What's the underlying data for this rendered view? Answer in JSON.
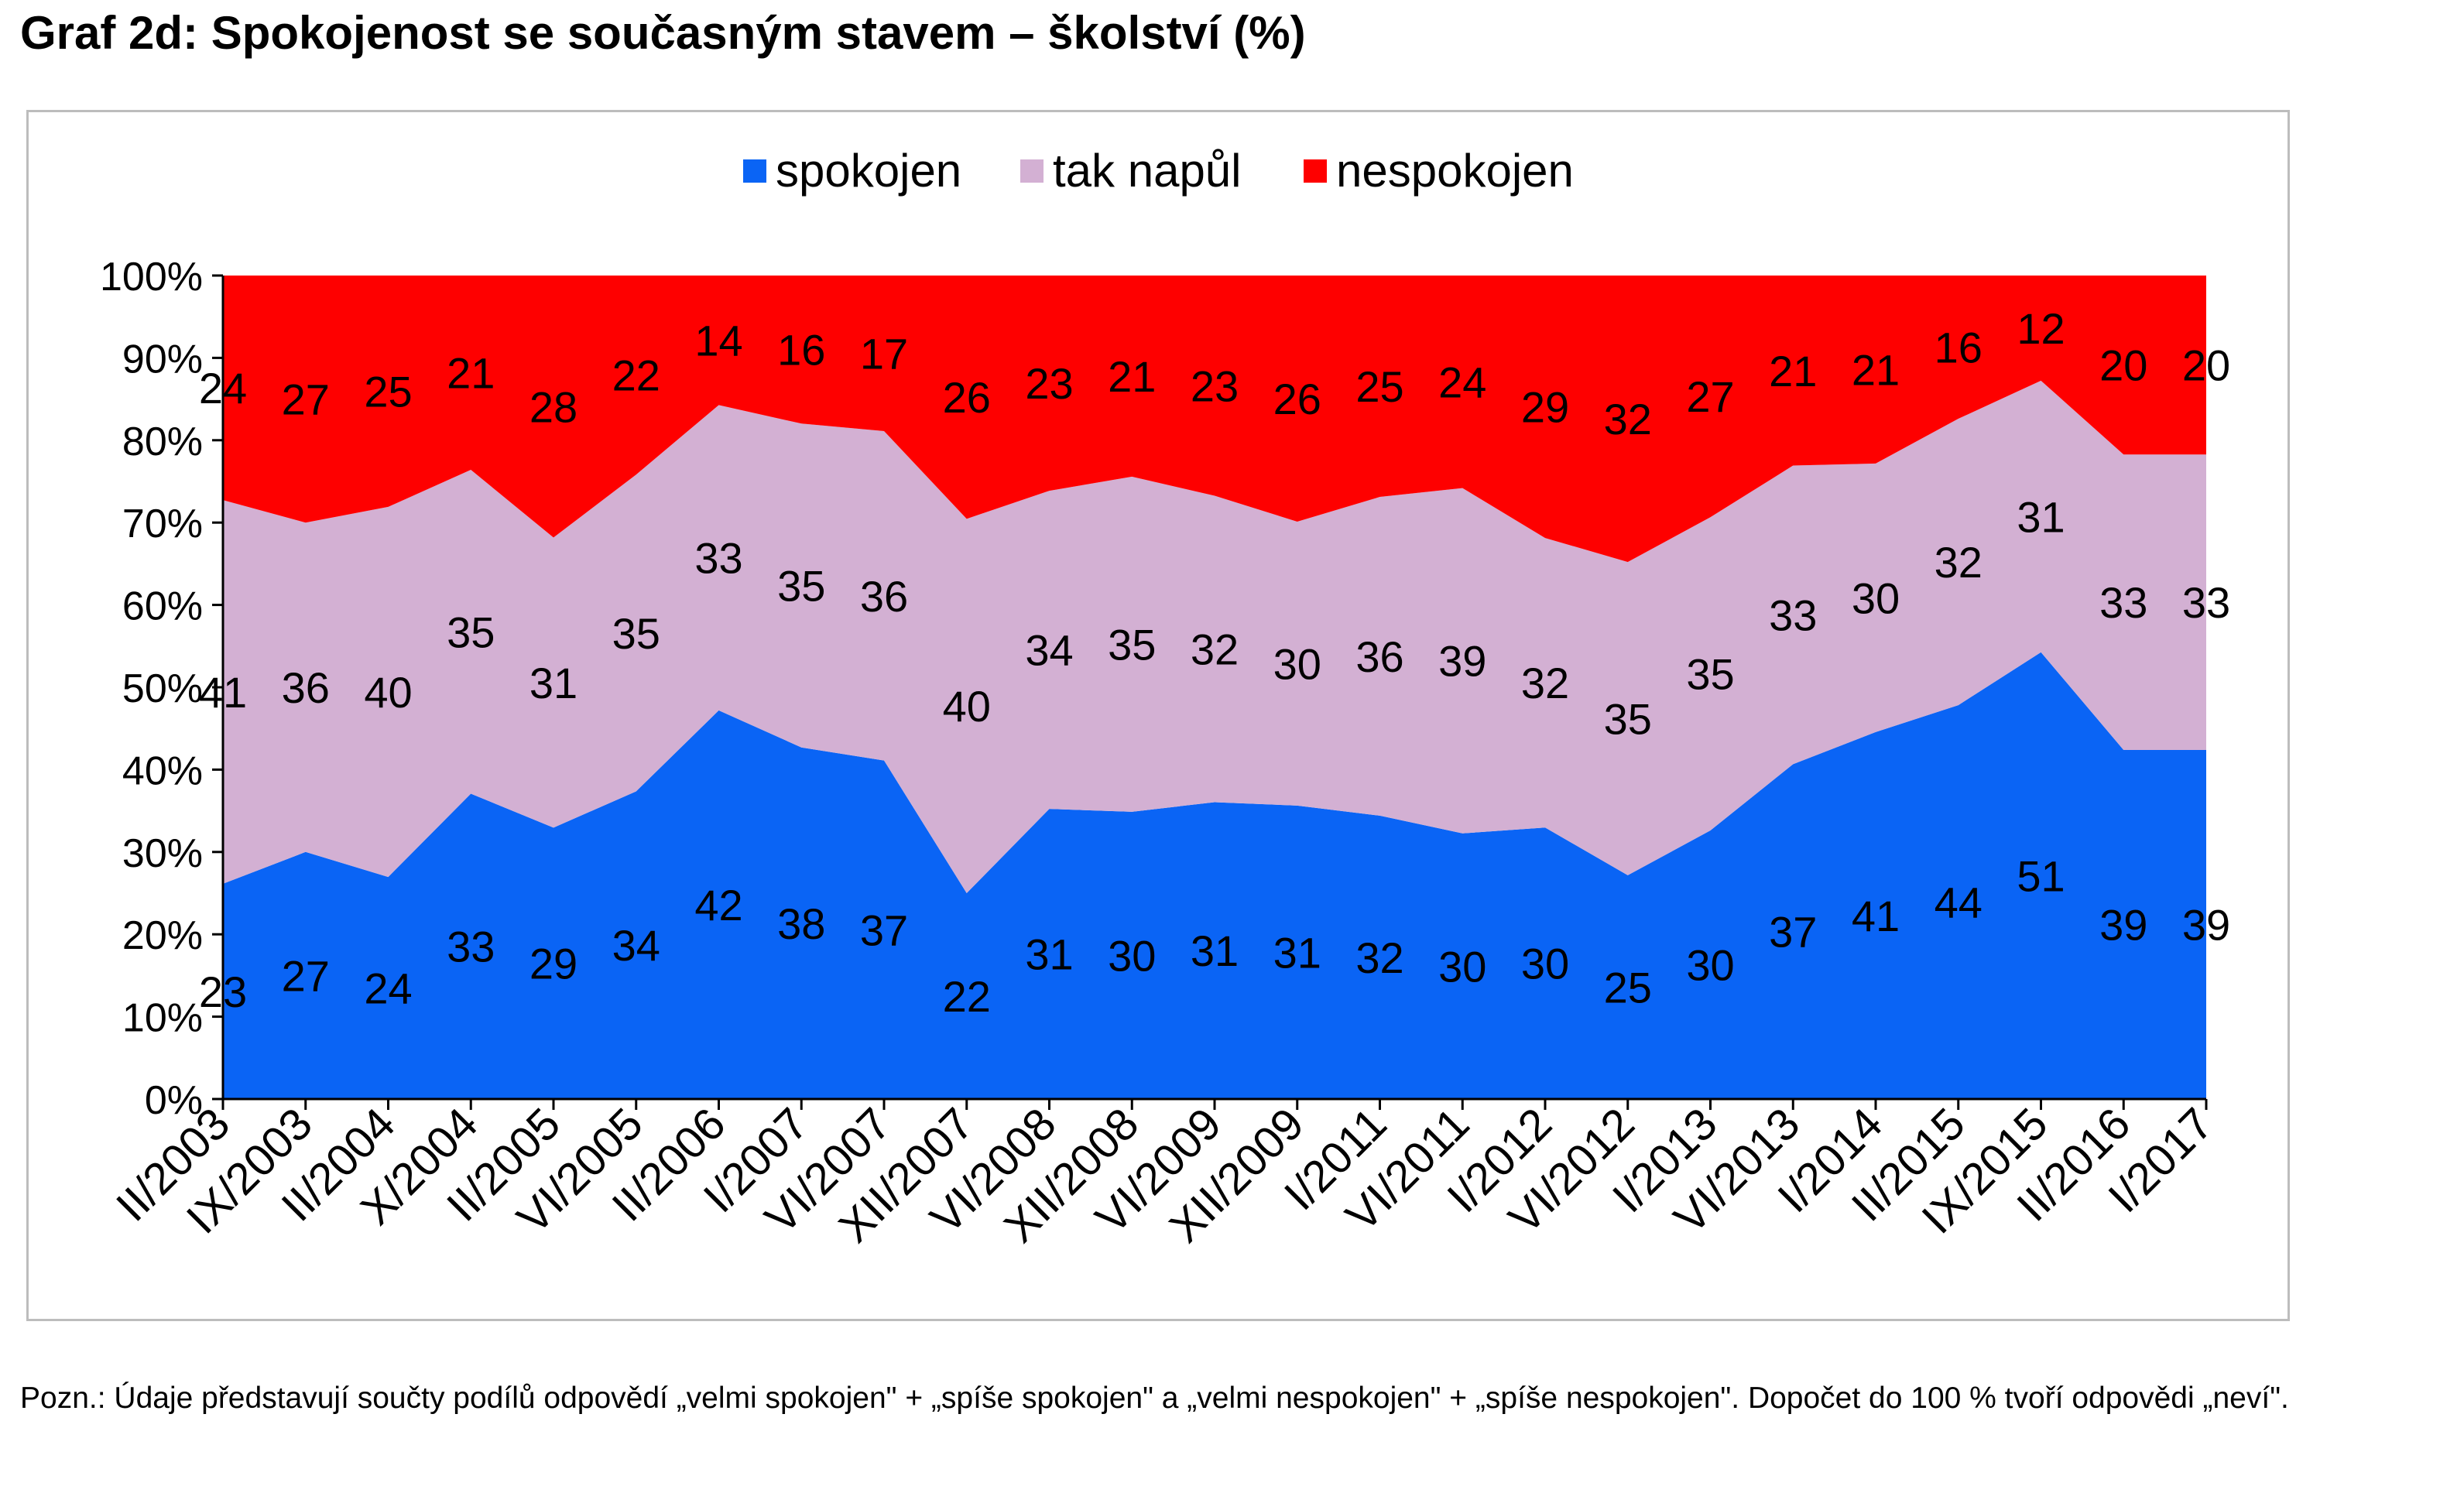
{
  "title": "Graf 2d: Spokojenost se současným stavem – školství (%)",
  "footnote": "Pozn.: Údaje představují součty podílů odpovědí „velmi spokojen\" + „spíše spokojen\" a „velmi nespokojen\" + „spíše nespokojen\". Dopočet do 100 % tvoří odpovědi „neví\".",
  "colors": {
    "spokojen": "#0a64f5",
    "tak_napul": "#d3b0d3",
    "nespokojen": "#fe0000"
  },
  "chart_data": {
    "type": "area",
    "stacked": true,
    "normalized_100_percent": true,
    "title": "",
    "xlabel": "",
    "ylabel": "",
    "ylim": [
      0,
      100
    ],
    "yticks": [
      "0%",
      "10%",
      "20%",
      "30%",
      "40%",
      "50%",
      "60%",
      "70%",
      "80%",
      "90%",
      "100%"
    ],
    "legend_position": "top-center",
    "grid": false,
    "categories": [
      "II/2003",
      "IX/2003",
      "II/2004",
      "X/2004",
      "II/2005",
      "VI/2005",
      "II/2006",
      "I/2007",
      "VI/2007",
      "XII/2007",
      "VI/2008",
      "XII/2008",
      "VI/2009",
      "XII/2009",
      "I/2011",
      "VI/2011",
      "I/2012",
      "VI/2012",
      "I/2013",
      "VI/2013",
      "I/2014",
      "II/2015",
      "IX/2015",
      "II/2016",
      "I/2017"
    ],
    "series": [
      {
        "name": "spokojen",
        "color": "#0a64f5",
        "values": [
          23,
          27,
          24,
          33,
          29,
          34,
          42,
          38,
          37,
          22,
          31,
          30,
          31,
          31,
          32,
          30,
          30,
          25,
          30,
          37,
          41,
          44,
          51,
          39,
          39
        ]
      },
      {
        "name": "tak napůl",
        "color": "#d3b0d3",
        "values": [
          41,
          36,
          40,
          35,
          31,
          35,
          33,
          35,
          36,
          40,
          34,
          35,
          32,
          30,
          36,
          39,
          32,
          35,
          35,
          33,
          30,
          32,
          31,
          33,
          33
        ]
      },
      {
        "name": "nespokojen",
        "color": "#fe0000",
        "values": [
          24,
          27,
          25,
          21,
          28,
          22,
          14,
          16,
          17,
          26,
          23,
          21,
          23,
          26,
          25,
          24,
          29,
          32,
          27,
          21,
          21,
          16,
          12,
          20,
          20
        ]
      }
    ]
  }
}
